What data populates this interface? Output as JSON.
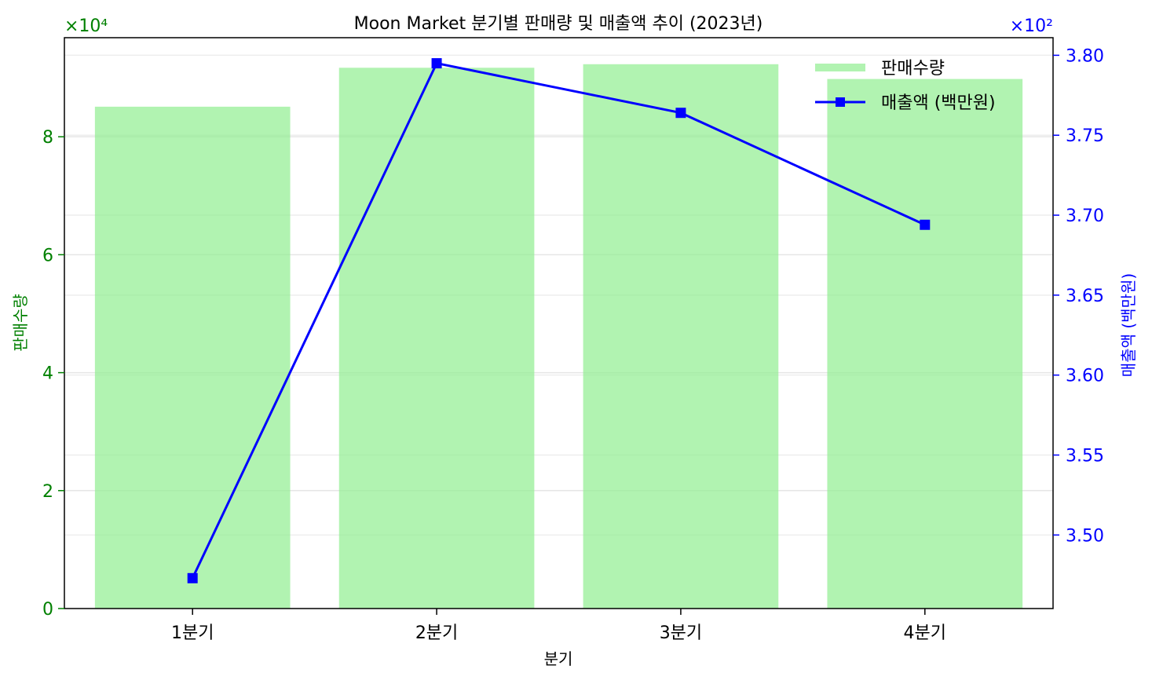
{
  "chart_data": {
    "type": "bar",
    "title": "Moon Market 분기별 판매량 및 매출액 추이 (2023년)",
    "xlabel": "분기",
    "categories": [
      "1분기",
      "2분기",
      "3분기",
      "4분기"
    ],
    "ylabel_left": "판매수량",
    "ylabel_right": "매출액 (백만원)",
    "left_axis": {
      "scale_label": "×10⁴",
      "ylim": [
        0,
        96800
      ],
      "ticks": [
        0,
        20000,
        40000,
        60000,
        80000
      ],
      "tick_labels": [
        "0",
        "2",
        "4",
        "6",
        "8"
      ],
      "color": "#008000"
    },
    "right_axis": {
      "scale_label": "×10²",
      "ylim": [
        345.4,
        381.1
      ],
      "ticks": [
        350,
        355,
        360,
        365,
        370,
        375,
        380
      ],
      "tick_labels": [
        "3.50",
        "3.55",
        "3.60",
        "3.65",
        "3.70",
        "3.75",
        "3.80"
      ],
      "color": "#0000ff"
    },
    "series": [
      {
        "name": "판매수량",
        "kind": "bar",
        "axis": "left",
        "color": "#90ee90",
        "values": [
          85100,
          91700,
          92300,
          89800
        ]
      },
      {
        "name": "매출액 (백만원)",
        "kind": "line",
        "axis": "right",
        "color": "#0000ff",
        "marker": "square",
        "values": [
          347.3,
          379.5,
          376.4,
          369.4
        ]
      }
    ],
    "grid": true,
    "legend_position": "top-right"
  }
}
